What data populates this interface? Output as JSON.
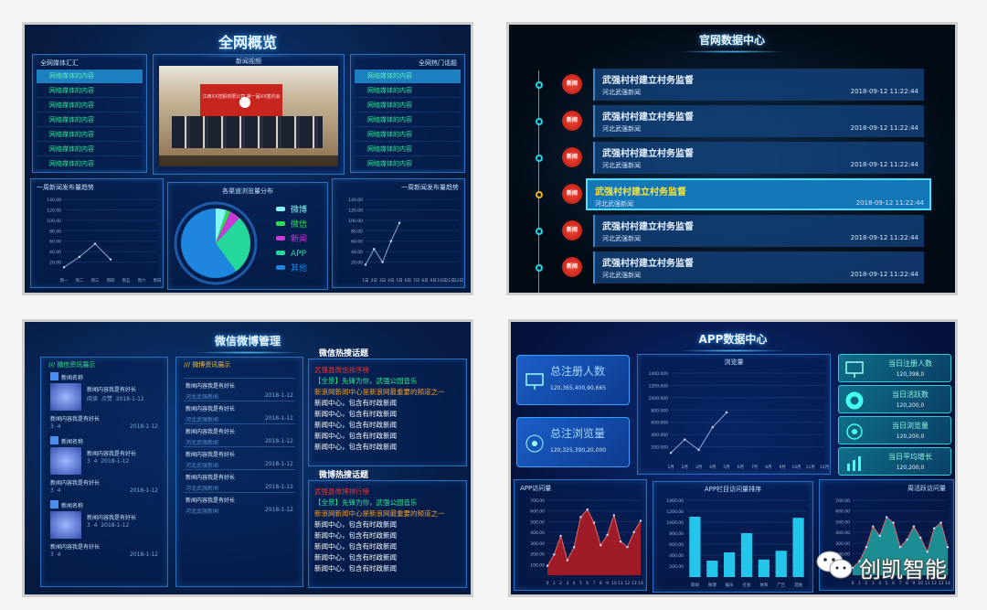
{
  "overview": {
    "title": "全网概览",
    "left_list": {
      "header": "全网媒体汇汇",
      "items": [
        "网络媒体的内容",
        "网络媒体的内容",
        "网络媒体的内容",
        "网络媒体的内容",
        "网络媒体的内容",
        "网络媒体的内容",
        "网络媒体的内容"
      ]
    },
    "video": {
      "header": "新闻视频",
      "banner": "江西XX控股有限公司 第一届XX签约会议"
    },
    "right_list": {
      "header": "全网热门话题",
      "items": [
        "网络媒体的内容",
        "网络媒体的内容",
        "网络媒体的内容",
        "网络媒体的内容",
        "网络媒体的内容",
        "网络媒体的内容",
        "网络媒体的内容"
      ]
    },
    "chart_left_header": "一周新闻发布量趋势",
    "pie_header": "各渠道浏览量分布",
    "chart_right_header": "一周新闻发布量趋势"
  },
  "official": {
    "title": "官网数据中心",
    "badge_label": "新闻",
    "items": [
      {
        "title": "武强村村建立村务监督",
        "source": "河北武强新闻",
        "time": "2018-09-12 11:22:44",
        "active": false
      },
      {
        "title": "武强村村建立村务监督",
        "source": "河北武强新闻",
        "time": "2018-09-12 11:22:44",
        "active": false
      },
      {
        "title": "武强村村建立村务监督",
        "source": "河北武强新闻",
        "time": "2018-09-12 11:22:44",
        "active": false
      },
      {
        "title": "武强村村建立村务监督",
        "source": "河北武强新闻",
        "time": "2018-09-12 11:22:44",
        "active": true
      },
      {
        "title": "武强村村建立村务监督",
        "source": "河北武强新闻",
        "time": "2018-09-12 11:22:44",
        "active": false
      },
      {
        "title": "武强村村建立村务监督",
        "source": "河北武强新闻",
        "time": "2018-09-12 11:22:44",
        "active": false
      }
    ]
  },
  "wechat": {
    "title": "微信微博管理",
    "wechat_col": {
      "header": "微信资讯展示",
      "posts": [
        {
          "account": "新闻名称",
          "headline": "新闻内容我是有好长",
          "meta": [
            "阅读",
            "点赞",
            "2018-1-12"
          ],
          "footer": "新闻内容我是有好长",
          "footer_meta": [
            "3",
            "4",
            "2018-1-12"
          ]
        },
        {
          "account": "新闻名称",
          "headline": "新闻内容我是有好长",
          "meta": [
            "3",
            "4",
            "2018-1-12"
          ],
          "footer": "新闻内容我是有好长",
          "footer_meta": [
            "3",
            "4",
            "2018-1-12"
          ]
        },
        {
          "account": "新闻名称",
          "headline": "新闻内容我是有好长",
          "meta": [
            "3",
            "4",
            "2018-1-12"
          ],
          "footer": "新闻内容我是有好长",
          "footer_meta": [
            "3",
            "4",
            "2018-1-12"
          ]
        }
      ]
    },
    "weibo_col": {
      "header": "微博资讯展示",
      "items": [
        {
          "title": "新闻内容我是有好长",
          "source": "河北武强新闻",
          "date": "2018-1-12"
        },
        {
          "title": "新闻内容我是有好长",
          "source": "河北武强新闻",
          "date": "2018-1-12"
        },
        {
          "title": "新闻内容我是有好长",
          "source": "河北武强新闻",
          "date": "2018-1-12"
        },
        {
          "title": "新闻内容我是有好长",
          "source": "河北武强新闻",
          "date": "2018-1-12"
        },
        {
          "title": "新闻内容我是有好长",
          "source": "河北武强新闻",
          "date": "2018-1-12"
        },
        {
          "title": "新闻内容我是有好长",
          "source": "河北武强新闻",
          "date": "2018-1-12"
        }
      ]
    },
    "hot_wechat": {
      "header": "微信热搜话题",
      "lines": [
        {
          "text": "武强县微信排序榜",
          "color": "#e8322e"
        },
        {
          "text": "【全景】先锋为你，武强公园音乐",
          "color": "#2ee690"
        },
        {
          "text": "新浪网新闻中心是新浪网最重要的频道之一",
          "color": "#f0a030"
        },
        {
          "text": "新闻中心，包含有时政新闻",
          "color": "#ffffff"
        },
        {
          "text": "新闻中心，包含有时政新闻",
          "color": "#ffffff"
        },
        {
          "text": "新闻中心，包含有时政新闻",
          "color": "#ffffff"
        },
        {
          "text": "新闻中心，包含有时政新闻",
          "color": "#ffffff"
        },
        {
          "text": "新闻中心，包含有时政新闻",
          "color": "#ffffff"
        }
      ]
    },
    "hot_weibo": {
      "header": "微博热搜话题",
      "lines": [
        {
          "text": "武强县微博排行榜",
          "color": "#e8322e"
        },
        {
          "text": "【全景】先锋为你，武强公园音乐",
          "color": "#2ee690"
        },
        {
          "text": "新浪网新闻中心是新浪网最重要的频道之一",
          "color": "#f0a030"
        },
        {
          "text": "新闻中心，包含有时政新闻",
          "color": "#ffffff"
        },
        {
          "text": "新闻中心，包含有时政新闻",
          "color": "#ffffff"
        },
        {
          "text": "新闻中心，包含有时政新闻",
          "color": "#ffffff"
        },
        {
          "text": "新闻中心，包含有时政新闻",
          "color": "#ffffff"
        },
        {
          "text": "新闻中心，包含有时政新闻",
          "color": "#ffffff"
        }
      ]
    }
  },
  "app": {
    "title": "APP数据中心",
    "total_cards": [
      {
        "label": "总注册人数",
        "value": "120,365,400,90,665",
        "icon": "monitor-icon"
      },
      {
        "label": "总注浏览量",
        "value": "120,325,390,20,000",
        "icon": "radar-icon"
      }
    ],
    "daily_cards": [
      {
        "label": "当日注册人数",
        "value": "120,398,0",
        "icon": "monitor-icon"
      },
      {
        "label": "当日活跃数",
        "value": "120,200,0",
        "icon": "donut-icon"
      },
      {
        "label": "当日浏览量",
        "value": "120,200,0",
        "icon": "gauge-icon"
      },
      {
        "label": "当日平均增长",
        "value": "120,200,0",
        "icon": "growth-chart-icon"
      }
    ],
    "area_header": "APP访问量",
    "bar_header": "APP栏目访问量排序",
    "right_header": "周活跃访问量"
  },
  "watermark": {
    "text": "创凯智能"
  },
  "chart_data": [
    {
      "type": "line",
      "xlabel": "",
      "ylabel": "",
      "categories": [
        "周一",
        "周二",
        "周三",
        "周四",
        "周五",
        "周六",
        "周日"
      ],
      "values": [
        10,
        30,
        55,
        25,
        null,
        null,
        null
      ],
      "yticks": [
        "20.00",
        "40.00",
        "60.00",
        "80.00",
        "100.00",
        "120.00",
        "140.00"
      ],
      "ylim": [
        0,
        140
      ],
      "color": "#8aa8d8"
    },
    {
      "type": "pie",
      "categories": [
        "微博",
        "微信",
        "新闻",
        "APP",
        "其他"
      ],
      "values": [
        5,
        2,
        5,
        28,
        60
      ],
      "colors": [
        "#86f5f5",
        "#2fdc55",
        "#c93ad8",
        "#24d89c",
        "#1e86df"
      ],
      "legend": "right"
    },
    {
      "type": "line",
      "categories": [
        "1日",
        "2日",
        "3日",
        "4日",
        "5日",
        "6日",
        "7日",
        "8日",
        "9日",
        "10日",
        "11日",
        "12日"
      ],
      "values": [
        15,
        45,
        20,
        60,
        95,
        null,
        null,
        null,
        null,
        null,
        null,
        null
      ],
      "yticks": [
        "20.00",
        "40.00",
        "60.00",
        "80.00",
        "100.00",
        "120.00",
        "140.00"
      ],
      "ylim": [
        0,
        140
      ],
      "color": "#8aa8d8"
    },
    {
      "type": "line",
      "title": "浏览量",
      "categories": [
        "1月",
        "2月",
        "3月",
        "4月",
        "5月",
        "6月",
        "7月",
        "8月",
        "9月",
        "10月",
        "11月",
        "12月"
      ],
      "values": [
        100,
        320,
        150,
        520,
        760,
        null,
        null,
        null,
        null,
        null,
        null,
        null
      ],
      "yticks": [
        "200.000",
        "400.000",
        "600.000",
        "800.000",
        "1000.000",
        "1200.000",
        "1400.000"
      ],
      "ylim": [
        0,
        1400
      ],
      "color": "#8aa8d8"
    },
    {
      "type": "area",
      "categories": [
        "0",
        "1",
        "2",
        "3",
        "4",
        "5",
        "6",
        "7",
        "8",
        "9",
        "10",
        "11",
        "12",
        "13",
        "14"
      ],
      "values": [
        100,
        220,
        420,
        160,
        300,
        620,
        700,
        560,
        320,
        430,
        640,
        360,
        300,
        460,
        580
      ],
      "yticks": [
        "100.00",
        "200.00",
        "300.00",
        "400.00",
        "500.00",
        "600.00",
        "700.00"
      ],
      "ylim": [
        0,
        800
      ],
      "color": "#b01c24"
    },
    {
      "type": "bar",
      "categories": [
        "新闻",
        "微博",
        "娱乐",
        "社会",
        "体育",
        "广告",
        "其他"
      ],
      "values": [
        1100,
        300,
        450,
        800,
        320,
        480,
        1080
      ],
      "yticks": [
        "200.00",
        "400.00",
        "600.00",
        "800.00",
        "1000.00",
        "1200.00",
        "1400.00"
      ],
      "ylim": [
        0,
        1400
      ],
      "color": "#23c6ea"
    },
    {
      "type": "area",
      "categories": [
        "0",
        "1",
        "2",
        "3",
        "4",
        "5",
        "6",
        "7",
        "8",
        "9",
        "10",
        "11",
        "12",
        "13",
        "14"
      ],
      "values": [
        80,
        150,
        300,
        520,
        420,
        620,
        560,
        300,
        380,
        520,
        400,
        250,
        500,
        560,
        300
      ],
      "yticks": [
        "100.00",
        "200.00",
        "300.00",
        "400.00",
        "500.00",
        "600.00",
        "700.00"
      ],
      "ylim": [
        0,
        800
      ],
      "color": "#1f9a9a"
    }
  ]
}
